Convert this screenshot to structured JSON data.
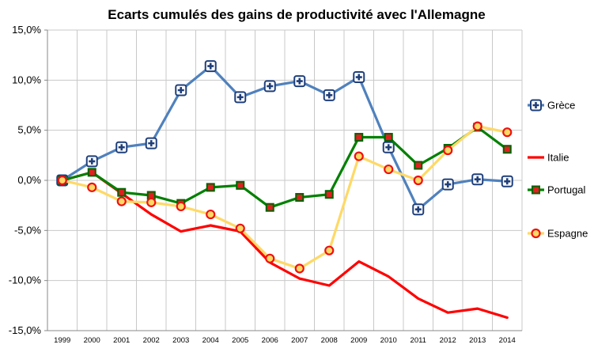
{
  "chart_data": {
    "type": "line",
    "title": "Ecarts cumulés des gains de productivité avec l'Allemagne",
    "categories": [
      "1999",
      "2000",
      "2001",
      "2002",
      "2003",
      "2004",
      "2005",
      "2006",
      "2007",
      "2008",
      "2009",
      "2010",
      "2011",
      "2012",
      "2013",
      "2014"
    ],
    "y_ticks": [
      "15,0%",
      "10,0%",
      "5,0%",
      "0,0%",
      "-5,0%",
      "-10,0%",
      "-15,0%"
    ],
    "ylim": [
      -15,
      15
    ],
    "grid": true,
    "legend_position": "right",
    "series": [
      {
        "name": "Grèce",
        "color": "#4f81bd",
        "marker": "plus-square",
        "values": [
          0.0,
          1.9,
          3.3,
          3.7,
          9.0,
          11.4,
          8.3,
          9.4,
          9.9,
          8.5,
          10.3,
          3.3,
          -2.9,
          -0.4,
          0.1,
          -0.1
        ]
      },
      {
        "name": "Italie",
        "color": "#ff0000",
        "marker": "none",
        "values": [
          0.0,
          0.8,
          -1.3,
          -3.4,
          -5.1,
          -4.5,
          -5.1,
          -8.2,
          -9.8,
          -10.5,
          -8.1,
          -9.6,
          -11.8,
          -13.2,
          -12.8,
          -13.7
        ]
      },
      {
        "name": "Portugal",
        "color": "#008000",
        "marker": "square",
        "values": [
          0.0,
          0.8,
          -1.2,
          -1.5,
          -2.3,
          -0.7,
          -0.5,
          -2.7,
          -1.7,
          -1.4,
          4.3,
          4.3,
          1.5,
          3.2,
          5.3,
          3.1
        ]
      },
      {
        "name": "Espagne",
        "color": "#ffd966",
        "marker": "circle",
        "values": [
          0.0,
          -0.7,
          -2.1,
          -2.2,
          -2.6,
          -3.4,
          -4.8,
          -7.8,
          -8.8,
          -7.0,
          2.4,
          1.1,
          0.0,
          3.0,
          5.4,
          4.8
        ]
      }
    ]
  }
}
